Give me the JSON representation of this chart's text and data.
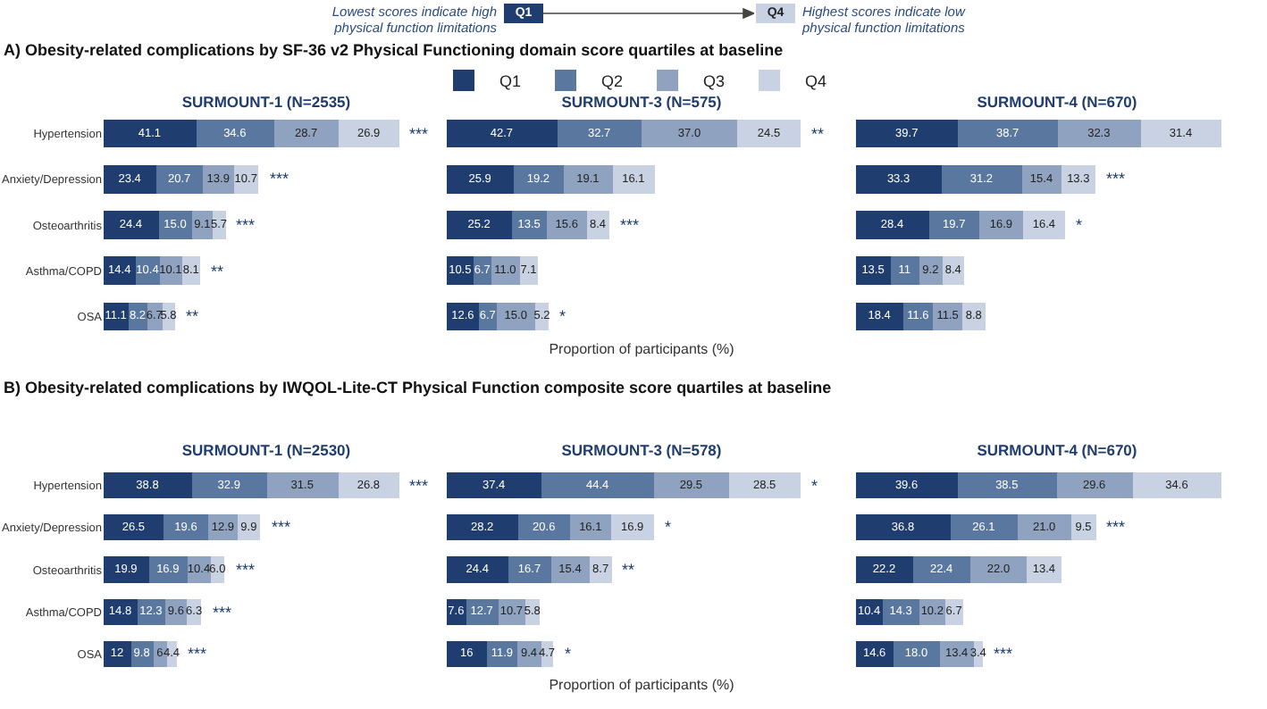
{
  "chart_data": [
    {
      "type": "bar",
      "orientation": "horizontal",
      "stacked": true,
      "title": "SURMOUNT-1 (N=2535)",
      "subtitle": "A) Obesity-related complications by SF-36 v2 Physical Functioning domain score quartiles at baseline",
      "legend": "top",
      "tick_labels": "y",
      "categories": [
        "Hypertension",
        "Anxiety/Depression",
        "Osteoarthritis",
        "Asthma/COPD",
        "OSA"
      ],
      "series": [
        {
          "name": "Q1",
          "color": "#1f3d6e",
          "values": [
            41.1,
            23.4,
            24.4,
            14.4,
            11.1
          ],
          "value_labels": [
            "41.1",
            "23.4",
            "24.4",
            "14.4",
            "11.1"
          ]
        },
        {
          "name": "Q2",
          "color": "#5a77a0",
          "values": [
            34.6,
            20.7,
            15.0,
            10.4,
            8.2
          ],
          "value_labels": [
            "34.6",
            "20.7",
            "15.0",
            "10.4",
            "8.2"
          ]
        },
        {
          "name": "Q3",
          "color": "#8fa3c1",
          "values": [
            28.7,
            13.9,
            9.1,
            10.1,
            6.7
          ],
          "value_labels": [
            "28.7",
            "13.9",
            "9.1",
            "10.1",
            "6.7"
          ]
        },
        {
          "name": "Q4",
          "color": "#c8d2e2",
          "values": [
            26.9,
            10.7,
            5.7,
            8.1,
            5.8
          ],
          "value_labels": [
            "26.9",
            "10.7",
            "5.7",
            "8.1",
            "5.8"
          ]
        }
      ],
      "annotations": [
        "Lowest scores indicate high physical function limitations",
        "Q1",
        "Q4",
        "Highest scores indicate low physical function limitations",
        {
          "text": "***",
          "x": 131.3,
          "y": "Hypertension"
        },
        {
          "text": "***",
          "x": 68.7,
          "y": "Anxiety/Depression"
        },
        {
          "text": "***",
          "x": 54.2,
          "y": "Osteoarthritis"
        },
        {
          "text": "**",
          "x": 43.0,
          "y": "Asthma/COPD"
        },
        {
          "text": "**",
          "x": 31.8,
          "y": "OSA"
        }
      ]
    },
    {
      "type": "bar",
      "orientation": "horizontal",
      "stacked": true,
      "title": "SURMOUNT-3 (N=575)",
      "xlabel": "Proportion of participants (%)",
      "tick_labels": false,
      "categories": [
        "Hypertension",
        "Anxiety/Depression",
        "Osteoarthritis",
        "Asthma/COPD",
        "OSA"
      ],
      "series": [
        {
          "color": "#1f3d6e",
          "values": [
            42.7,
            25.9,
            25.2,
            10.5,
            12.6
          ],
          "value_labels": [
            "42.7",
            "25.9",
            "25.2",
            "10.5",
            "12.6"
          ]
        },
        {
          "color": "#5a77a0",
          "values": [
            32.7,
            19.2,
            13.5,
            6.7,
            6.7
          ],
          "value_labels": [
            "32.7",
            "19.2",
            "13.5",
            "6.7",
            "6.7"
          ]
        },
        {
          "color": "#8fa3c1",
          "values": [
            37.0,
            19.1,
            15.6,
            11.0,
            15.0
          ],
          "value_labels": [
            "37.0",
            "19.1",
            "15.6",
            "11.0",
            "15.0"
          ]
        },
        {
          "color": "#c8d2e2",
          "values": [
            24.5,
            16.1,
            8.4,
            7.1,
            5.2
          ],
          "value_labels": [
            "24.5",
            "16.1",
            "8.4",
            "7.1",
            "5.2"
          ]
        }
      ],
      "annotations": [
        {
          "text": "**",
          "x": 136.9,
          "y": "Hypertension"
        },
        {
          "text": "***",
          "x": 62.7,
          "y": "Osteoarthritis"
        },
        {
          "text": "*",
          "x": 39.5,
          "y": "OSA"
        }
      ]
    },
    {
      "type": "bar",
      "orientation": "horizontal",
      "stacked": true,
      "title": "SURMOUNT-4 (N=670)",
      "tick_labels": false,
      "categories": [
        "Hypertension",
        "Anxiety/Depression",
        "Osteoarthritis",
        "Asthma/COPD",
        "OSA"
      ],
      "series": [
        {
          "color": "#1f3d6e",
          "values": [
            39.7,
            33.3,
            28.4,
            13.5,
            18.4
          ],
          "value_labels": [
            "39.7",
            "33.3",
            "28.4",
            "13.5",
            "18.4"
          ]
        },
        {
          "color": "#5a77a0",
          "values": [
            38.7,
            31.2,
            19.7,
            11,
            11.6
          ],
          "value_labels": [
            "38.7",
            "31.2",
            "19.7",
            "11",
            "11.6"
          ]
        },
        {
          "color": "#8fa3c1",
          "values": [
            32.3,
            15.4,
            16.9,
            9.2,
            11.5
          ],
          "value_labels": [
            "32.3",
            "15.4",
            "16.9",
            "9.2",
            "11.5"
          ]
        },
        {
          "color": "#c8d2e2",
          "values": [
            31.4,
            13.3,
            16.4,
            8.4,
            8.8
          ],
          "value_labels": [
            "31.4",
            "13.3",
            "16.4",
            "8.4",
            "8.8"
          ]
        }
      ],
      "annotations": [
        {
          "text": "***",
          "x": 93.2,
          "y": "Anxiety/Depression"
        },
        {
          "text": "*",
          "x": 81.4,
          "y": "Osteoarthritis"
        }
      ]
    },
    {
      "type": "bar",
      "orientation": "horizontal",
      "stacked": true,
      "title": "SURMOUNT-1 (N=2530)",
      "subtitle": "B) Obesity-related complications by IWQOL-Lite-CT Physical Function composite score quartiles at baseline",
      "tick_labels": "y",
      "categories": [
        "Hypertension",
        "Anxiety/Depression",
        "Osteoarthritis",
        "Asthma/COPD",
        "OSA"
      ],
      "series": [
        {
          "color": "#1f3d6e",
          "values": [
            38.8,
            26.5,
            19.9,
            14.8,
            12
          ],
          "value_labels": [
            "38.8",
            "26.5",
            "19.9",
            "14.8",
            "12"
          ]
        },
        {
          "color": "#5a77a0",
          "values": [
            32.9,
            19.6,
            16.9,
            12.3,
            9.8
          ],
          "value_labels": [
            "32.9",
            "19.6",
            "16.9",
            "12.3",
            "9.8"
          ]
        },
        {
          "color": "#8fa3c1",
          "values": [
            31.5,
            12.9,
            10.4,
            9.6,
            6
          ],
          "value_labels": [
            "31.5",
            "12.9",
            "10.4",
            "9.6",
            "6"
          ]
        },
        {
          "color": "#c8d2e2",
          "values": [
            26.8,
            9.9,
            6.0,
            6.3,
            4.4
          ],
          "value_labels": [
            "26.8",
            "9.9",
            "6.0",
            "6.3",
            "4.4"
          ]
        }
      ],
      "annotations": [
        {
          "text": "***",
          "x": 130.0,
          "y": "Hypertension"
        },
        {
          "text": "***",
          "x": 68.9,
          "y": "Anxiety/Depression"
        },
        {
          "text": "***",
          "x": 53.2,
          "y": "Osteoarthritis"
        },
        {
          "text": "***",
          "x": 43.0,
          "y": "Asthma/COPD"
        },
        {
          "text": "***",
          "x": 32.2,
          "y": "OSA"
        }
      ]
    },
    {
      "type": "bar",
      "orientation": "horizontal",
      "stacked": true,
      "title": "SURMOUNT-3 (N=578)",
      "xlabel": "Proportion of participants (%)",
      "tick_labels": false,
      "categories": [
        "Hypertension",
        "Anxiety/Depression",
        "Osteoarthritis",
        "Asthma/COPD",
        "OSA"
      ],
      "series": [
        {
          "color": "#1f3d6e",
          "values": [
            37.4,
            28.2,
            24.4,
            7.6,
            16
          ],
          "value_labels": [
            "37.4",
            "28.2",
            "24.4",
            "7.6",
            "16"
          ]
        },
        {
          "color": "#5a77a0",
          "values": [
            44.4,
            20.6,
            16.7,
            12.7,
            11.9
          ],
          "value_labels": [
            "44.4",
            "20.6",
            "16.7",
            "12.7",
            "11.9"
          ]
        },
        {
          "color": "#8fa3c1",
          "values": [
            29.5,
            16.1,
            15.4,
            10.7,
            9.4
          ],
          "value_labels": [
            "29.5",
            "16.1",
            "15.4",
            "10.7",
            "9.4"
          ]
        },
        {
          "color": "#c8d2e2",
          "values": [
            28.5,
            16.9,
            8.7,
            5.8,
            4.7
          ],
          "value_labels": [
            "28.5",
            "16.9",
            "8.7",
            "5.8",
            "4.7"
          ]
        }
      ],
      "annotations": [
        {
          "text": "*",
          "x": 139.8,
          "y": "Hypertension"
        },
        {
          "text": "*",
          "x": 81.8,
          "y": "Anxiety/Depression"
        },
        {
          "text": "**",
          "x": 65.2,
          "y": "Osteoarthritis"
        },
        {
          "text": "*",
          "x": 42.0,
          "y": "OSA"
        }
      ]
    },
    {
      "type": "bar",
      "orientation": "horizontal",
      "stacked": true,
      "title": "SURMOUNT-4 (N=670)",
      "tick_labels": false,
      "categories": [
        "Hypertension",
        "Anxiety/Depression",
        "Osteoarthritis",
        "Asthma/COPD",
        "OSA"
      ],
      "series": [
        {
          "color": "#1f3d6e",
          "values": [
            39.6,
            36.8,
            22.2,
            10.4,
            14.6
          ],
          "value_labels": [
            "39.6",
            "36.8",
            "22.2",
            "10.4",
            "14.6"
          ]
        },
        {
          "color": "#5a77a0",
          "values": [
            38.5,
            26.1,
            22.4,
            14.3,
            18.0
          ],
          "value_labels": [
            "38.5",
            "26.1",
            "22.4",
            "14.3",
            "18.0"
          ]
        },
        {
          "color": "#8fa3c1",
          "values": [
            29.6,
            21.0,
            22.0,
            10.2,
            13.4
          ],
          "value_labels": [
            "29.6",
            "21.0",
            "22.0",
            "10.2",
            "13.4"
          ]
        },
        {
          "color": "#c8d2e2",
          "values": [
            34.6,
            9.5,
            13.4,
            6.7,
            3.4
          ],
          "value_labels": [
            "34.6",
            "9.5",
            "13.4",
            "6.7",
            "3.4"
          ]
        }
      ],
      "annotations": [
        {
          "text": "***",
          "x": 93.4,
          "y": "Anxiety/Depression"
        },
        {
          "text": "***",
          "x": 49.4,
          "y": "OSA"
        }
      ]
    }
  ]
}
